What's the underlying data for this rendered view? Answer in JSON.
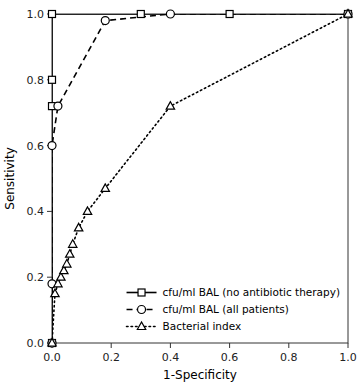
{
  "chart_data": {
    "type": "line",
    "xlabel": "1-Specificity",
    "ylabel": "Sensitivity",
    "xlim": [
      0,
      1
    ],
    "ylim": [
      0,
      1
    ],
    "xticks": [
      {
        "value": 0,
        "label": "0.0"
      },
      0.2,
      0.4,
      0.6,
      0.8,
      {
        "value": 1,
        "label": "1.0"
      }
    ],
    "yticks": [
      {
        "value": 0,
        "label": "0.0"
      },
      0.2,
      0.4,
      0.6,
      0.8,
      {
        "value": 1,
        "label": "1.0"
      }
    ],
    "legend": "lower right",
    "series": [
      {
        "name": "cfu/ml BAL (no antibiotic therapy)",
        "color": "#000000",
        "marker": "square",
        "line_style": "solid",
        "x": [
          0,
          0,
          0,
          0,
          0.3,
          0.6,
          1.0
        ],
        "values": [
          0,
          0.72,
          0.8,
          1.0,
          1.0,
          1.0,
          1.0
        ]
      },
      {
        "name": "cfu/ml BAL (all patients)",
        "color": "#000000",
        "marker": "circle",
        "line_style": "dashed",
        "x": [
          0,
          0,
          0,
          0.02,
          0.18,
          0.4,
          1.0
        ],
        "values": [
          0,
          0.18,
          0.6,
          0.72,
          0.98,
          1.0,
          1.0
        ]
      },
      {
        "name": "Bacterial index",
        "color": "#000000",
        "marker": "triangle",
        "line_style": "dotted",
        "x": [
          0,
          0.01,
          0.02,
          0.03,
          0.04,
          0.05,
          0.06,
          0.07,
          0.09,
          0.12,
          0.18,
          0.4,
          1.0
        ],
        "values": [
          0,
          0.15,
          0.18,
          0.2,
          0.22,
          0.24,
          0.27,
          0.3,
          0.35,
          0.4,
          0.47,
          0.72,
          1.0
        ]
      }
    ]
  }
}
